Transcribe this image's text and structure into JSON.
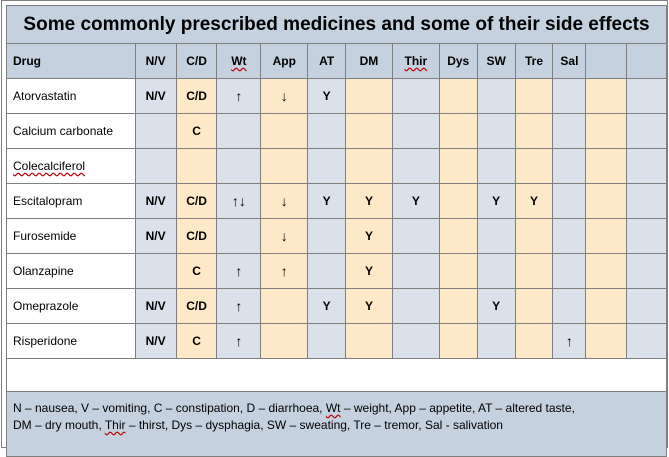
{
  "title": "Some commonly prescribed medicines and some of their side effects",
  "columns": [
    "Drug",
    "N/V",
    "C/D",
    "Wt",
    "App",
    "AT",
    "DM",
    "Thir",
    "Dys",
    "SW",
    "Tre",
    "Sal",
    "",
    ""
  ],
  "rows": [
    {
      "drug": "Atorvastatin",
      "cells": [
        "N/V",
        "C/D",
        "↑",
        "↓",
        "Y",
        "",
        "",
        "",
        "",
        "",
        "",
        "",
        ""
      ]
    },
    {
      "drug": "Calcium carbonate",
      "cells": [
        "",
        "C",
        "",
        "",
        "",
        "",
        "",
        "",
        "",
        "",
        "",
        "",
        ""
      ]
    },
    {
      "drug": "Colecalciferol",
      "cells": [
        "",
        "",
        "",
        "",
        "",
        "",
        "",
        "",
        "",
        "",
        "",
        "",
        ""
      ]
    },
    {
      "drug": "Escitalopram",
      "cells": [
        "N/V",
        "C/D",
        "↑↓",
        "↓",
        "Y",
        "Y",
        "Y",
        "",
        "Y",
        "Y",
        "",
        "",
        ""
      ]
    },
    {
      "drug": "Furosemide",
      "cells": [
        "N/V",
        "C/D",
        "",
        "↓",
        "",
        "Y",
        "",
        "",
        "",
        "",
        "",
        "",
        ""
      ]
    },
    {
      "drug": "Olanzapine",
      "cells": [
        "",
        "C",
        "↑",
        "↑",
        "",
        "Y",
        "",
        "",
        "",
        "",
        "",
        "",
        ""
      ]
    },
    {
      "drug": "Omeprazole",
      "cells": [
        "N/V",
        "C/D",
        "↑",
        "",
        "Y",
        "Y",
        "",
        "",
        "Y",
        "",
        "",
        "",
        ""
      ]
    },
    {
      "drug": "Risperidone",
      "cells": [
        "N/V",
        "C",
        "↑",
        "",
        "",
        "",
        "",
        "",
        "",
        "",
        "↑",
        "",
        ""
      ]
    }
  ],
  "legend": {
    "line1": "N – nausea, V – vomiting, C – constipation, D – diarrhoea, Wt – weight, App – appetite, AT – altered taste,",
    "line2": "DM – dry mouth, Thir – thirst, Dys – dysphagia, SW – sweating, Tre – tremor, Sal - salivation"
  }
}
